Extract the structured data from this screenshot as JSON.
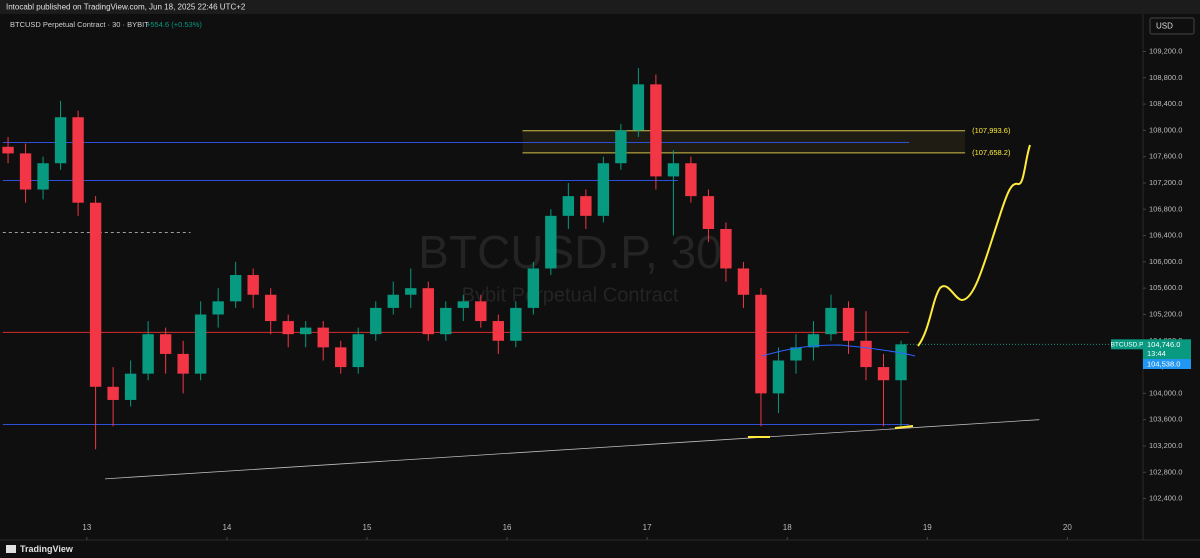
{
  "header": {
    "publisher": "Intocabl published on TradingView.com, Jun 18, 2025 22:46 UTC+2",
    "symbol_line": "BTCUSD Perpetual Contract · 30 · BYBIT",
    "change": "+554.6 (+0.53%)",
    "currency": "USD",
    "brand": "TradingView"
  },
  "chart_data": {
    "type": "candlestick",
    "watermark": "BTCUSD.P, 30",
    "watermark_sub": "Bybit Perpetual Contract",
    "x": [
      12.4375,
      12.5625,
      12.6875,
      12.8125,
      12.9375,
      13.0625,
      13.1875,
      13.3125,
      13.4375,
      13.5625,
      13.6875,
      13.8125,
      13.9375,
      14.0625,
      14.1875,
      14.3125,
      14.4375,
      14.5625,
      14.6875,
      14.8125,
      14.9375,
      15.0625,
      15.1875,
      15.3125,
      15.4375,
      15.5625,
      15.6875,
      15.8125,
      15.9375,
      16.0625,
      16.1875,
      16.3125,
      16.4375,
      16.5625,
      16.6875,
      16.8125,
      16.9375,
      17.0625,
      17.1875,
      17.3125,
      17.4375,
      17.5625,
      17.6875,
      17.8125,
      17.9375,
      18.0625,
      18.1875,
      18.3125,
      18.4375,
      18.5625,
      18.6875,
      18.8125
    ],
    "open": [
      107750,
      107650,
      107100,
      107500,
      108200,
      106900,
      104100,
      103900,
      104300,
      104900,
      104600,
      104300,
      105200,
      105400,
      105800,
      105500,
      105100,
      104900,
      105000,
      104700,
      104400,
      104900,
      105300,
      105500,
      105600,
      104900,
      105300,
      105400,
      105100,
      104800,
      105300,
      105900,
      106700,
      107000,
      106700,
      107500,
      108000,
      108700,
      107300,
      107500,
      107000,
      106500,
      105900,
      105500,
      104000,
      104500,
      104700,
      104900,
      105300,
      104800,
      104400,
      104200
    ],
    "high": [
      107900,
      107800,
      107600,
      108450,
      108300,
      107000,
      104400,
      104500,
      105100,
      105000,
      104800,
      105400,
      105600,
      106000,
      105900,
      105600,
      105200,
      105100,
      105100,
      104800,
      105000,
      105400,
      105700,
      105900,
      105700,
      105400,
      105500,
      105500,
      105200,
      105400,
      106000,
      106800,
      107200,
      107100,
      107600,
      108100,
      108950,
      108850,
      107700,
      107600,
      107100,
      106600,
      106000,
      105600,
      104700,
      104900,
      105100,
      105500,
      105400,
      105250,
      104600,
      104800
    ],
    "low": [
      107500,
      106900,
      106950,
      107400,
      106700,
      103150,
      103500,
      103800,
      104200,
      104300,
      104000,
      104200,
      105000,
      105300,
      105300,
      104900,
      104700,
      104700,
      104500,
      104300,
      104300,
      104800,
      105200,
      105300,
      104800,
      104800,
      105100,
      105000,
      104600,
      104700,
      105200,
      105800,
      106500,
      106500,
      106600,
      107400,
      107900,
      107100,
      106400,
      106900,
      106300,
      105700,
      105300,
      103500,
      103700,
      104300,
      104500,
      104800,
      104600,
      104200,
      103500,
      103500
    ],
    "close": [
      107650,
      107100,
      107500,
      108200,
      106900,
      104100,
      103900,
      104300,
      104900,
      104600,
      104300,
      105200,
      105400,
      105800,
      105500,
      105100,
      104900,
      105000,
      104700,
      104400,
      104900,
      105300,
      105500,
      105600,
      104900,
      105300,
      105400,
      105100,
      104800,
      105300,
      105900,
      106700,
      107000,
      106700,
      107500,
      108000,
      108700,
      107300,
      107500,
      107000,
      106500,
      105900,
      105500,
      104000,
      104500,
      104700,
      104900,
      105300,
      104800,
      104400,
      104200,
      104746
    ],
    "up_color": "#089981",
    "down_color": "#f23645",
    "xlim": [
      12.38,
      20.54
    ],
    "xticks": [
      13,
      14,
      15,
      16,
      17,
      18,
      19,
      20
    ],
    "ylim": [
      101770,
      109770
    ],
    "yticks": [
      {
        "value": 102400,
        "label": "102,400.0"
      },
      {
        "value": 102800,
        "label": "102,800.0"
      },
      {
        "value": 103200,
        "label": "103,200.0"
      },
      {
        "value": 103600,
        "label": "103,600.0"
      },
      {
        "value": 104000,
        "label": "104,000.0"
      },
      {
        "value": 104400,
        "label": "104,400.0"
      },
      {
        "value": 104800,
        "label": "104,800.0"
      },
      {
        "value": 105200,
        "label": "105,200.0"
      },
      {
        "value": 105600,
        "label": "105,600.0"
      },
      {
        "value": 106000,
        "label": "106,000.0"
      },
      {
        "value": 106400,
        "label": "106,400.0"
      },
      {
        "value": 106800,
        "label": "106,800.0"
      },
      {
        "value": 107200,
        "label": "107,200.0"
      },
      {
        "value": 107600,
        "label": "107,600.0"
      },
      {
        "value": 108000,
        "label": "108,000.0"
      },
      {
        "value": 108400,
        "label": "108,400.0"
      },
      {
        "value": 108800,
        "label": "108,800.0"
      },
      {
        "value": 109200,
        "label": "109,200.0"
      }
    ],
    "levels": [
      {
        "value": 107816,
        "x": [
          12.4,
          18.87
        ],
        "color": "#2f4fd8"
      },
      {
        "value": 107238,
        "x": [
          12.4,
          17.22
        ],
        "color": "#2f4fd8"
      },
      {
        "value": 104927,
        "x": [
          12.4,
          18.87
        ],
        "color": "#d32f2f"
      },
      {
        "value": 103527,
        "x": [
          12.4,
          18.87
        ],
        "color": "#2f4fd8"
      },
      {
        "value": 106447,
        "x": [
          12.4,
          13.74
        ],
        "color": "#9e9e9e"
      }
    ],
    "zone": {
      "x": [
        16.11,
        19.27
      ],
      "color": "#d4c04a",
      "top": {
        "value": 107993.6,
        "label": "(107,993.6)"
      },
      "bottom": {
        "value": 107658.2,
        "label": "(107,658.2)"
      }
    },
    "trendline": {
      "x": [
        13.13,
        19.8
      ],
      "y": [
        102700,
        103600
      ],
      "color": "#bdbdbd"
    },
    "last_price": {
      "value": 104746,
      "label": "104,746.0",
      "symbol": "BTCUSD.P",
      "countdown": "13:44",
      "color": "#089981"
    },
    "ma_value": {
      "value": 104538,
      "label": "104,538.0",
      "color": "#2196f3"
    }
  }
}
